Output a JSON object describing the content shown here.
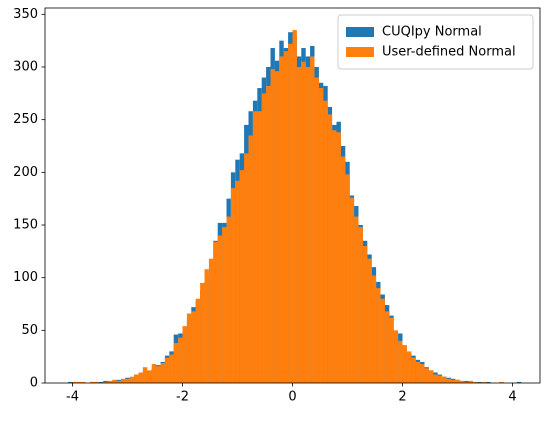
{
  "chart_data": {
    "type": "histogram",
    "bins": [
      -4.08,
      -4,
      -3.92,
      -3.84,
      -3.76,
      -3.68,
      -3.6,
      -3.52,
      -3.44,
      -3.36,
      -3.28,
      -3.2,
      -3.12,
      -3.04,
      -2.96,
      -2.88,
      -2.8,
      -2.72,
      -2.64,
      -2.56,
      -2.48,
      -2.4,
      -2.32,
      -2.24,
      -2.16,
      -2.08,
      -2,
      -1.92,
      -1.84,
      -1.76,
      -1.68,
      -1.6,
      -1.52,
      -1.44,
      -1.36,
      -1.28,
      -1.2,
      -1.12,
      -1.04,
      -0.96,
      -0.88,
      -0.8,
      -0.72,
      -0.64,
      -0.56,
      -0.48,
      -0.4,
      -0.32,
      -0.24,
      -0.16,
      -0.08,
      0,
      0.08,
      0.16,
      0.24,
      0.32,
      0.4,
      0.48,
      0.56,
      0.64,
      0.72,
      0.8,
      0.88,
      0.96,
      1.04,
      1.12,
      1.2,
      1.28,
      1.36,
      1.44,
      1.52,
      1.6,
      1.68,
      1.76,
      1.84,
      1.92,
      2,
      2.08,
      2.16,
      2.24,
      2.32,
      2.4,
      2.48,
      2.56,
      2.64,
      2.72,
      2.8,
      2.88,
      2.96,
      3.04,
      3.12,
      3.2,
      3.28,
      3.36,
      3.44,
      3.52,
      3.6,
      3.68,
      3.76,
      3.84,
      3.92,
      4,
      4.08,
      4.16
    ],
    "series": [
      {
        "name": "CUQIpy Normal",
        "color": "#1f77b4",
        "values": [
          1,
          0,
          0,
          0,
          0,
          1,
          0,
          1,
          2,
          1,
          2,
          3,
          3,
          5,
          4,
          8,
          9,
          12,
          11,
          14,
          17,
          20,
          26,
          30,
          46,
          47,
          52,
          60,
          72,
          78,
          88,
          103,
          107,
          135,
          152,
          152,
          175,
          200,
          212,
          218,
          245,
          258,
          268,
          280,
          290,
          300,
          318,
          306,
          325,
          318,
          333,
          330,
          310,
          318,
          310,
          320,
          300,
          285,
          282,
          262,
          245,
          248,
          225,
          210,
          178,
          168,
          150,
          135,
          122,
          110,
          96,
          84,
          74,
          64,
          48,
          47,
          34,
          28,
          26,
          22,
          20,
          15,
          12,
          10,
          8,
          6,
          5,
          4,
          3,
          2,
          2,
          1,
          1,
          1,
          0,
          1,
          0,
          0,
          0,
          0,
          0,
          0,
          1
        ]
      },
      {
        "name": "User-defined Normal",
        "color": "#ff7f0e",
        "values": [
          0,
          1,
          1,
          1,
          0,
          1,
          1,
          0,
          1,
          2,
          3,
          2,
          4,
          4,
          6,
          8,
          10,
          15,
          12,
          18,
          16,
          19,
          24,
          27,
          38,
          43,
          54,
          66,
          68,
          80,
          95,
          108,
          118,
          134,
          140,
          148,
          158,
          185,
          192,
          202,
          218,
          235,
          258,
          258,
          275,
          282,
          298,
          296,
          310,
          315,
          322,
          335,
          300,
          305,
          300,
          310,
          290,
          280,
          268,
          255,
          240,
          238,
          215,
          198,
          176,
          158,
          148,
          130,
          118,
          102,
          90,
          80,
          68,
          62,
          50,
          40,
          36,
          30,
          24,
          20,
          18,
          14,
          12,
          8,
          7,
          6,
          4,
          3,
          3,
          2,
          1,
          2,
          1,
          0,
          1,
          0,
          0,
          0,
          1,
          0,
          0,
          0,
          0
        ]
      }
    ],
    "xlim": [
      -4.5,
      4.5
    ],
    "ylim": [
      0,
      356
    ],
    "xticks": [
      -4,
      -2,
      0,
      2,
      4
    ],
    "yticks": [
      0,
      50,
      100,
      150,
      200,
      250,
      300,
      350
    ],
    "legend": "upper right"
  }
}
